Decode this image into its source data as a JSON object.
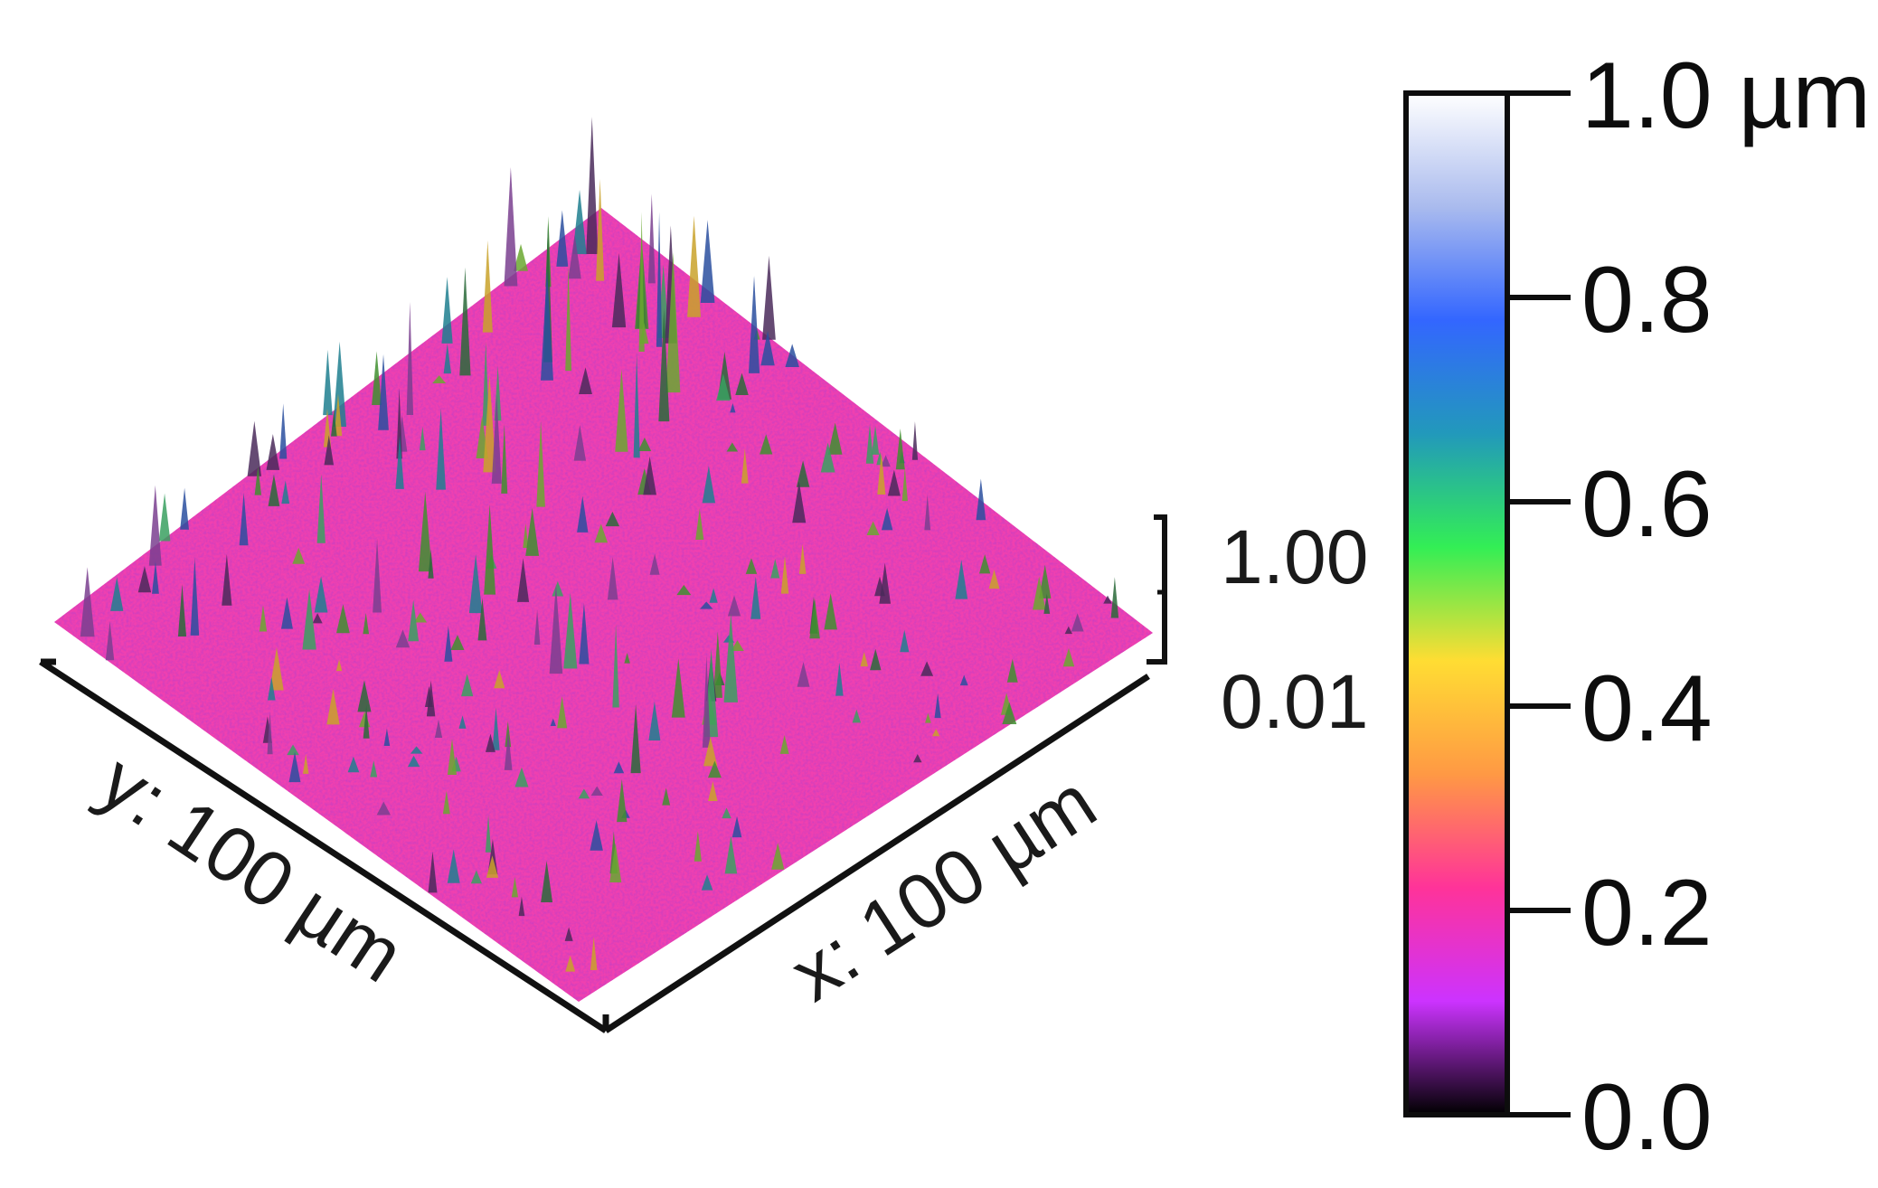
{
  "chart_data": {
    "type": "heatmap",
    "subtype": "3d-surface-topography",
    "x_axis_label": "x: 100 µm",
    "y_axis_label": "y: 100 µm",
    "z_scale": {
      "top": "1.00",
      "bottom": "0.01"
    },
    "colorbar": {
      "range": [
        0.0,
        1.0
      ],
      "unit": "µm",
      "ticks": [
        0.0,
        0.2,
        0.4,
        0.6,
        0.8,
        1.0
      ],
      "tick_labels": [
        "0.0",
        "0.2",
        "0.4",
        "0.6",
        "0.8",
        "1.0 µm"
      ],
      "colors": [
        "#000000",
        "#cc33ff",
        "#ff3399",
        "#ff9944",
        "#ffdd33",
        "#33ee55",
        "#2299bb",
        "#3366ff",
        "#aabbee",
        "#ffffff"
      ]
    },
    "surface": {
      "base_color": "#f040b0",
      "x_range_um": [
        0,
        100
      ],
      "y_range_um": [
        0,
        100
      ]
    }
  }
}
